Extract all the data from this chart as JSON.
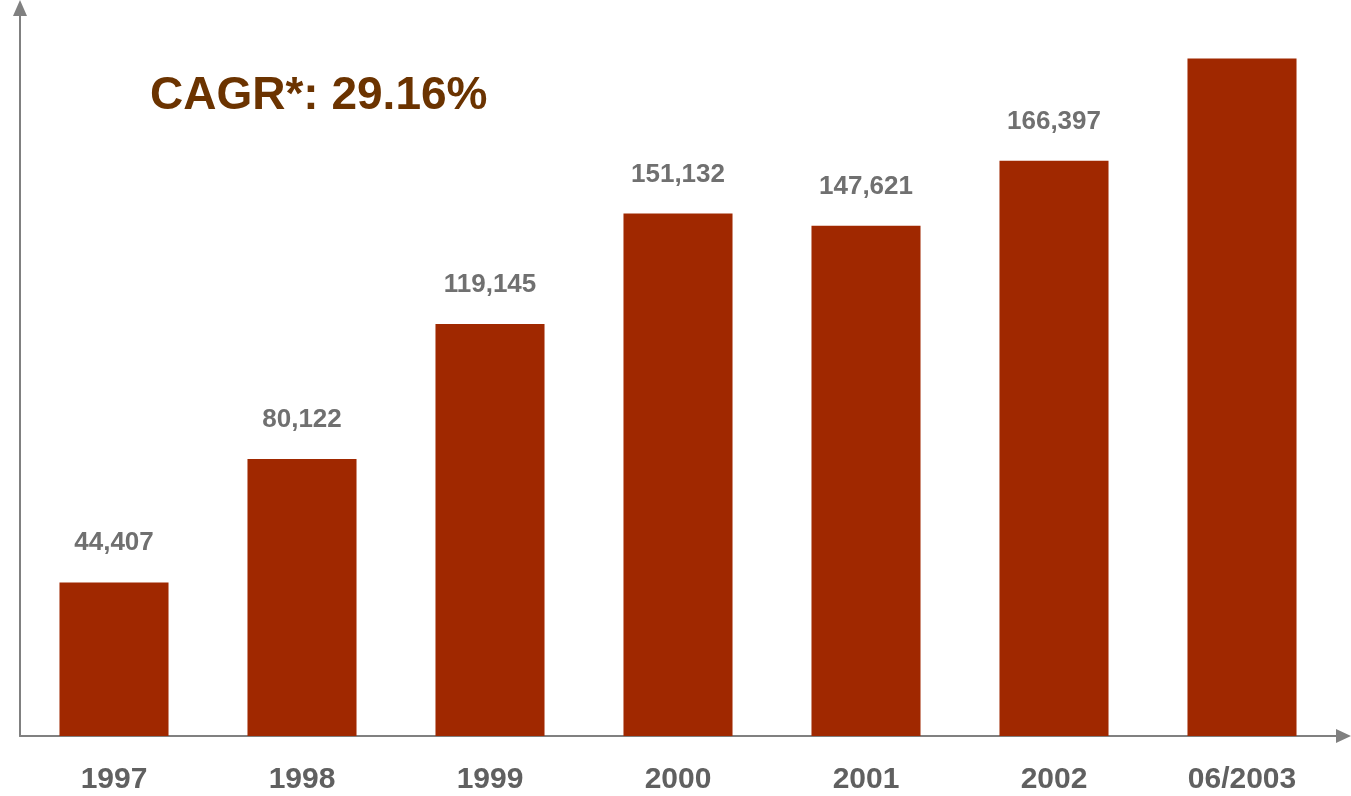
{
  "chart_data": {
    "type": "bar",
    "categories": [
      "1997",
      "1998",
      "1999",
      "2000",
      "2001",
      "2002",
      "06/2003"
    ],
    "values": [
      44407,
      80122,
      119145,
      151132,
      147621,
      166397,
      196000
    ],
    "value_labels": [
      "44,407",
      "80,122",
      "119,145",
      "151,132",
      "147,621",
      "166,397",
      null
    ],
    "color": "#a02800",
    "annotations": [
      "CAGR*: 29.16%"
    ]
  }
}
